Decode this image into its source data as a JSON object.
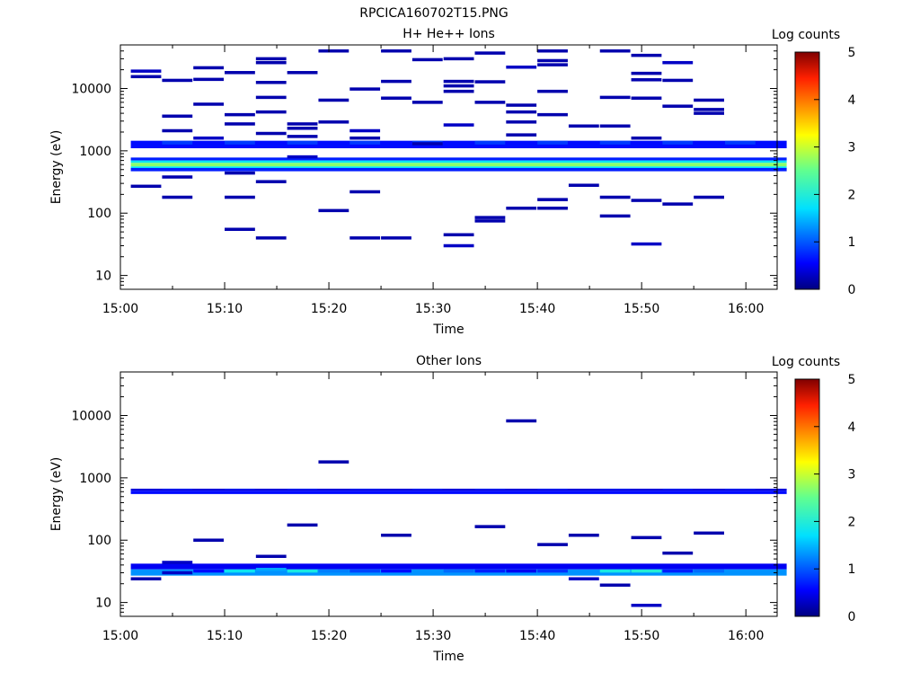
{
  "page_title": "RPCICA160702T15.PNG",
  "chart_data": [
    {
      "type": "heatmap",
      "title": "H+ He++ Ions",
      "xlabel": "Time",
      "ylabel": "Energy (eV)",
      "yscale": "log",
      "ylim": [
        6,
        50000
      ],
      "xlim": [
        "15:00",
        "16:03"
      ],
      "xticks": [
        "15:00",
        "15:10",
        "15:20",
        "15:30",
        "15:40",
        "15:50",
        "16:00"
      ],
      "yticks": [
        "10",
        "100",
        "1000",
        "10000"
      ],
      "colorbar": {
        "label": "Log counts",
        "ticks": [
          "0",
          "1",
          "2",
          "3",
          "4",
          "5"
        ],
        "range": [
          0,
          5
        ]
      },
      "time_bins": [
        "15:00",
        "15:03",
        "15:06",
        "15:09",
        "15:12",
        "15:15",
        "15:18",
        "15:21",
        "15:24",
        "15:27",
        "15:30",
        "15:33",
        "15:36",
        "15:39",
        "15:42",
        "15:45",
        "15:48",
        "15:51",
        "15:54",
        "15:57",
        "16:00"
      ],
      "persistent_bands": [
        {
          "e_low": 1100,
          "e_high": 1450,
          "log_counts": 0.6
        },
        {
          "e_low": 700,
          "e_high": 780,
          "log_counts": 0.7
        },
        {
          "e_low": 640,
          "e_high": 700,
          "log_counts": 1.8
        },
        {
          "e_low": 560,
          "e_high": 640,
          "log_counts": 2.7
        },
        {
          "e_low": 530,
          "e_high": 560,
          "log_counts": 1.7
        },
        {
          "e_low": 470,
          "e_high": 530,
          "log_counts": 0.7
        }
      ],
      "cells": [
        [
          0,
          15500,
          0.2
        ],
        [
          0,
          270,
          0.2
        ],
        [
          0,
          19000,
          0.3
        ],
        [
          1,
          13500,
          0.2
        ],
        [
          1,
          3600,
          0.2
        ],
        [
          1,
          2100,
          0.2
        ],
        [
          1,
          380,
          0.2
        ],
        [
          1,
          180,
          0.2
        ],
        [
          2,
          21500,
          0.2
        ],
        [
          2,
          14000,
          0.2
        ],
        [
          2,
          5600,
          0.2
        ],
        [
          2,
          1600,
          0.3
        ],
        [
          3,
          18000,
          0.2
        ],
        [
          3,
          3800,
          0.2
        ],
        [
          3,
          2700,
          0.2
        ],
        [
          3,
          440,
          0.2
        ],
        [
          3,
          180,
          0.2
        ],
        [
          3,
          55,
          0.2
        ],
        [
          4,
          30000,
          0.2
        ],
        [
          4,
          26000,
          0.2
        ],
        [
          4,
          12500,
          0.2
        ],
        [
          4,
          7200,
          0.2
        ],
        [
          4,
          4200,
          0.2
        ],
        [
          4,
          1900,
          0.2
        ],
        [
          4,
          320,
          0.2
        ],
        [
          4,
          40,
          0.2
        ],
        [
          5,
          18000,
          0.2
        ],
        [
          5,
          2700,
          0.2
        ],
        [
          5,
          2300,
          0.2
        ],
        [
          5,
          1700,
          0.2
        ],
        [
          5,
          800,
          0.3
        ],
        [
          6,
          40000,
          0.2
        ],
        [
          6,
          6500,
          0.2
        ],
        [
          6,
          2900,
          0.2
        ],
        [
          6,
          110,
          0.2
        ],
        [
          7,
          9800,
          0.2
        ],
        [
          7,
          2100,
          0.3
        ],
        [
          7,
          1600,
          0.2
        ],
        [
          7,
          220,
          0.2
        ],
        [
          7,
          40,
          0.2
        ],
        [
          8,
          40000,
          0.2
        ],
        [
          8,
          13000,
          0.2
        ],
        [
          8,
          7000,
          0.2
        ],
        [
          8,
          40,
          0.2
        ],
        [
          9,
          29000,
          0.2
        ],
        [
          9,
          6000,
          0.2
        ],
        [
          9,
          1300,
          0.2
        ],
        [
          10,
          30000,
          0.2
        ],
        [
          10,
          13000,
          0.2
        ],
        [
          10,
          11000,
          0.2
        ],
        [
          10,
          9000,
          0.2
        ],
        [
          10,
          2600,
          0.3
        ],
        [
          10,
          45,
          0.2
        ],
        [
          10,
          30,
          0.3
        ],
        [
          11,
          37000,
          0.2
        ],
        [
          11,
          12800,
          0.2
        ],
        [
          11,
          6000,
          0.2
        ],
        [
          11,
          85,
          0.2
        ],
        [
          11,
          75,
          0.2
        ],
        [
          12,
          22000,
          0.3
        ],
        [
          12,
          5400,
          0.2
        ],
        [
          12,
          4200,
          0.2
        ],
        [
          12,
          2900,
          0.2
        ],
        [
          12,
          1800,
          0.2
        ],
        [
          12,
          120,
          0.2
        ],
        [
          13,
          40000,
          0.2
        ],
        [
          13,
          28000,
          0.2
        ],
        [
          13,
          24000,
          0.2
        ],
        [
          13,
          9000,
          0.2
        ],
        [
          13,
          3800,
          0.2
        ],
        [
          13,
          165,
          0.2
        ],
        [
          13,
          120,
          0.2
        ],
        [
          14,
          2500,
          0.2
        ],
        [
          14,
          280,
          0.2
        ],
        [
          15,
          40000,
          0.2
        ],
        [
          15,
          7200,
          0.2
        ],
        [
          15,
          2500,
          0.2
        ],
        [
          15,
          180,
          0.2
        ],
        [
          15,
          90,
          0.2
        ],
        [
          16,
          34000,
          0.2
        ],
        [
          16,
          17500,
          0.2
        ],
        [
          16,
          13800,
          0.2
        ],
        [
          16,
          7000,
          0.2
        ],
        [
          16,
          1600,
          0.2
        ],
        [
          16,
          160,
          0.2
        ],
        [
          16,
          32,
          0.3
        ],
        [
          17,
          26000,
          0.3
        ],
        [
          17,
          13500,
          0.2
        ],
        [
          17,
          5200,
          0.2
        ],
        [
          17,
          140,
          0.2
        ],
        [
          18,
          6500,
          0.2
        ],
        [
          18,
          4600,
          0.2
        ],
        [
          18,
          4000,
          0.2
        ],
        [
          18,
          180,
          0.2
        ]
      ]
    },
    {
      "type": "heatmap",
      "title": "Other Ions",
      "xlabel": "Time",
      "ylabel": "Energy (eV)",
      "yscale": "log",
      "ylim": [
        6,
        50000
      ],
      "xlim": [
        "15:00",
        "16:03"
      ],
      "xticks": [
        "15:00",
        "15:10",
        "15:20",
        "15:30",
        "15:40",
        "15:50",
        "16:00"
      ],
      "yticks": [
        "10",
        "100",
        "1000",
        "10000"
      ],
      "colorbar": {
        "label": "Log counts",
        "ticks": [
          "0",
          "1",
          "2",
          "3",
          "4",
          "5"
        ],
        "range": [
          0,
          5
        ]
      },
      "time_bins": [
        "15:00",
        "15:03",
        "15:06",
        "15:09",
        "15:12",
        "15:15",
        "15:18",
        "15:21",
        "15:24",
        "15:27",
        "15:30",
        "15:33",
        "15:36",
        "15:39",
        "15:42",
        "15:45",
        "15:48",
        "15:51",
        "15:54",
        "15:57",
        "16:00"
      ],
      "persistent_bands": [
        {
          "e_low": 620,
          "e_high": 670,
          "log_counts": 0.4
        },
        {
          "e_low": 550,
          "e_high": 620,
          "log_counts": 0.6
        },
        {
          "e_low": 34,
          "e_high": 42,
          "log_counts": 0.5
        },
        {
          "e_low": 27,
          "e_high": 34,
          "log_counts": 1.3
        }
      ],
      "cells": [
        [
          0,
          24,
          0.2
        ],
        [
          1,
          44,
          0.3
        ],
        [
          1,
          30,
          0.3
        ],
        [
          2,
          100,
          0.2
        ],
        [
          2,
          32,
          0.6
        ],
        [
          3,
          32,
          1.8
        ],
        [
          4,
          55,
          0.2
        ],
        [
          4,
          34,
          1.4
        ],
        [
          5,
          175,
          0.2
        ],
        [
          5,
          32,
          1.9
        ],
        [
          6,
          1800,
          0.2
        ],
        [
          6,
          32,
          1.2
        ],
        [
          7,
          32,
          0.9
        ],
        [
          8,
          120,
          0.2
        ],
        [
          8,
          32,
          0.6
        ],
        [
          9,
          32,
          1.3
        ],
        [
          10,
          32,
          1.1
        ],
        [
          11,
          165,
          0.2
        ],
        [
          11,
          32,
          0.7
        ],
        [
          12,
          8200,
          0.2
        ],
        [
          12,
          32,
          0.5
        ],
        [
          13,
          85,
          0.2
        ],
        [
          13,
          32,
          0.8
        ],
        [
          14,
          120,
          0.2
        ],
        [
          14,
          24,
          0.3
        ],
        [
          15,
          32,
          1.9
        ],
        [
          15,
          19,
          0.2
        ],
        [
          16,
          110,
          0.2
        ],
        [
          16,
          32,
          2.0
        ],
        [
          16,
          9,
          0.3
        ],
        [
          17,
          62,
          0.2
        ],
        [
          17,
          32,
          0.7
        ],
        [
          18,
          130,
          0.2
        ],
        [
          18,
          32,
          1.1
        ]
      ]
    }
  ]
}
